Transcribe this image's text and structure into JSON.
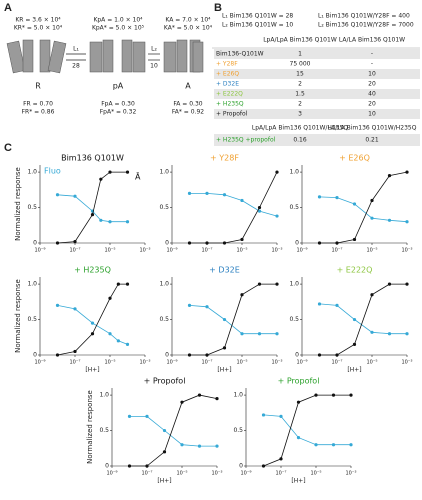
{
  "panel_a": {
    "label": "A",
    "states": [
      {
        "name": "R",
        "k1": "KR = 3.6 × 10⁴",
        "k2": "KR* = 5.0 × 10⁴",
        "f1": "FR = 0.70",
        "f2": "FR* = 0.86"
      },
      {
        "name": "pA",
        "k1": "KpA = 1.0 × 10⁴",
        "k2": "KpA* = 5.0 × 10⁵",
        "f1": "FpA = 0.30",
        "f2": "FpA* = 0.32"
      },
      {
        "name": "A",
        "k1": "KA = 7.0 × 10⁴",
        "k2": "KA* = 5.0 × 10⁴",
        "f1": "FA = 0.30",
        "f2": "FA* = 0.92"
      }
    ],
    "transitions": [
      {
        "label": "L₁",
        "value": 28
      },
      {
        "label": "L₂",
        "value": 10
      }
    ]
  },
  "panel_b": {
    "label": "B",
    "constants": [
      "L₁ Bim136 Q101W = 28",
      "L₂ Bim136 Q101W = 10",
      "L₁ Bim136 Q101W/Y28F = 400",
      "L₂ Bim136 Q101W/Y28F = 7000"
    ],
    "header": [
      "LpA/LpA Bim136 Q101W",
      "LA/LA Bim136 Q101W"
    ],
    "rows": [
      [
        "Bim136-Q101W",
        "1",
        "-"
      ],
      [
        "+ Y28F",
        "75 000",
        "-"
      ],
      [
        "+ E26Q",
        "15",
        "10"
      ],
      [
        "+ D32E",
        "2",
        "20"
      ],
      [
        "+ E222Q",
        "1.5",
        "40"
      ],
      [
        "+ H235Q",
        "2",
        "20"
      ],
      [
        "+ Propofol",
        "3",
        "10"
      ]
    ],
    "header2": [
      "LpA/LpA Bim136 Q101W/H235Q",
      "LA/LA Bim136 Q101W/H235Q"
    ],
    "rows2": [
      [
        "+ H235Q +propofol",
        "0.16",
        "0.21"
      ]
    ]
  },
  "panel_c": {
    "label": "C"
  },
  "chart_data": [
    {
      "type": "line",
      "title": "Bim136 Q101W",
      "title_color": "#111111",
      "ylabel": "Normalized response",
      "xlim": [
        1e-09,
        0.001
      ],
      "log_x": true,
      "ylim": [
        0,
        1.1
      ],
      "xticks": [
        {
          "value": 1e-09,
          "label": "10⁻⁹"
        },
        {
          "value": 1e-07,
          "label": "10⁻⁷"
        },
        {
          "value": 1e-05,
          "label": "10⁻⁵"
        },
        {
          "value": 0.001,
          "label": "10⁻³"
        }
      ],
      "yticks": [
        0,
        0.5,
        {
          "value": 1,
          "label": "1.0"
        }
      ],
      "x": [
        1e-08,
        1e-07,
        1e-06,
        3e-06,
        1e-05,
        0.0001
      ],
      "series": [
        {
          "name": "Fluo",
          "color": "#35a9d6",
          "values": [
            0.68,
            0.66,
            0.45,
            0.32,
            0.3,
            0.3
          ]
        },
        {
          "name": "Ā",
          "color": "#111111",
          "values": [
            0,
            0.02,
            0.4,
            0.9,
            1.0,
            1.0
          ]
        }
      ]
    },
    {
      "type": "line",
      "title": "+ Y28F",
      "title_color": "#f0a030",
      "xlim": [
        1e-09,
        0.001
      ],
      "log_x": true,
      "ylim": [
        0,
        1.1
      ],
      "xticks": [
        {
          "value": 1e-09,
          "label": "10⁻⁹"
        },
        {
          "value": 1e-07,
          "label": "10⁻⁷"
        },
        {
          "value": 1e-05,
          "label": "10⁻⁵"
        },
        {
          "value": 0.001,
          "label": "10⁻³"
        }
      ],
      "yticks": [
        0,
        0.5,
        {
          "value": 1,
          "label": "1.0"
        }
      ],
      "x": [
        1e-08,
        1e-07,
        1e-06,
        1e-05,
        0.0001,
        0.001
      ],
      "series": [
        {
          "color": "#35a9d6",
          "values": [
            0.7,
            0.7,
            0.68,
            0.6,
            0.45,
            0.38
          ]
        },
        {
          "color": "#111111",
          "values": [
            0,
            0,
            0,
            0.05,
            0.5,
            1.0
          ]
        }
      ]
    },
    {
      "type": "line",
      "title": "+ E26Q",
      "title_color": "#f0a030",
      "xlim": [
        1e-09,
        0.001
      ],
      "log_x": true,
      "ylim": [
        0,
        1.1
      ],
      "xticks": [
        {
          "value": 1e-09,
          "label": "10⁻⁹"
        },
        {
          "value": 1e-07,
          "label": "10⁻⁷"
        },
        {
          "value": 1e-05,
          "label": "10⁻⁵"
        },
        {
          "value": 0.001,
          "label": "10⁻³"
        }
      ],
      "yticks": [
        0,
        0.5,
        {
          "value": 1,
          "label": "1.0"
        }
      ],
      "x": [
        1e-08,
        1e-07,
        1e-06,
        1e-05,
        0.0001,
        0.001
      ],
      "series": [
        {
          "color": "#35a9d6",
          "values": [
            0.65,
            0.64,
            0.55,
            0.35,
            0.32,
            0.3
          ]
        },
        {
          "color": "#111111",
          "values": [
            0,
            0,
            0.05,
            0.6,
            0.95,
            1
          ]
        }
      ]
    },
    {
      "type": "line",
      "title": "+ H235Q",
      "title_color": "#2aa02a",
      "ylabel": "Normalized response",
      "xlabel": "[H+]",
      "xlim": [
        1e-09,
        0.001
      ],
      "log_x": true,
      "ylim": [
        0,
        1.1
      ],
      "xticks": [
        {
          "value": 1e-09,
          "label": "10⁻⁹"
        },
        {
          "value": 1e-07,
          "label": "10⁻⁷"
        },
        {
          "value": 1e-05,
          "label": "10⁻⁵"
        },
        {
          "value": 0.001,
          "label": "10⁻³"
        }
      ],
      "yticks": [
        0,
        0.5,
        {
          "value": 1,
          "label": "1.0"
        }
      ],
      "x": [
        1e-08,
        1e-07,
        1e-06,
        1e-05,
        3e-05,
        0.0001
      ],
      "series": [
        {
          "color": "#35a9d6",
          "values": [
            0.7,
            0.65,
            0.45,
            0.3,
            0.2,
            0.15
          ]
        },
        {
          "color": "#111111",
          "values": [
            0,
            0.05,
            0.3,
            0.8,
            1,
            1
          ]
        }
      ]
    },
    {
      "type": "line",
      "title": "+ D32E",
      "title_color": "#2a7fc0",
      "xlabel": "[H+]",
      "xlim": [
        1e-09,
        0.001
      ],
      "log_x": true,
      "ylim": [
        0,
        1.1
      ],
      "xticks": [
        {
          "value": 1e-09,
          "label": "10⁻⁹"
        },
        {
          "value": 1e-07,
          "label": "10⁻⁷"
        },
        {
          "value": 1e-05,
          "label": "10⁻⁵"
        },
        {
          "value": 0.001,
          "label": "10⁻³"
        }
      ],
      "yticks": [
        0,
        0.5,
        {
          "value": 1,
          "label": "1.0"
        }
      ],
      "x": [
        1e-08,
        1e-07,
        1e-06,
        1e-05,
        0.0001,
        0.001
      ],
      "series": [
        {
          "color": "#35a9d6",
          "values": [
            0.7,
            0.68,
            0.5,
            0.3,
            0.3,
            0.3
          ]
        },
        {
          "color": "#111111",
          "values": [
            0,
            0,
            0.1,
            0.85,
            1,
            1
          ]
        }
      ]
    },
    {
      "type": "line",
      "title": "+ E222Q",
      "title_color": "#8cc63f",
      "xlabel": "[H+]",
      "xlim": [
        1e-09,
        0.001
      ],
      "log_x": true,
      "ylim": [
        0,
        1.1
      ],
      "xticks": [
        {
          "value": 1e-09,
          "label": "10⁻⁹"
        },
        {
          "value": 1e-07,
          "label": "10⁻⁷"
        },
        {
          "value": 1e-05,
          "label": "10⁻⁵"
        },
        {
          "value": 0.001,
          "label": "10⁻³"
        }
      ],
      "yticks": [
        0,
        0.5,
        {
          "value": 1,
          "label": "1.0"
        }
      ],
      "x": [
        1e-08,
        1e-07,
        1e-06,
        1e-05,
        0.0001,
        0.001
      ],
      "series": [
        {
          "color": "#35a9d6",
          "values": [
            0.72,
            0.7,
            0.5,
            0.32,
            0.3,
            0.3
          ]
        },
        {
          "color": "#111111",
          "values": [
            0,
            0,
            0.15,
            0.85,
            1,
            1
          ]
        }
      ]
    },
    {
      "type": "line",
      "title": "+ Propofol",
      "title_color": "#111111",
      "ylabel": "Normalized response",
      "xlabel": "[H+]",
      "xlim": [
        1e-09,
        0.001
      ],
      "log_x": true,
      "ylim": [
        0,
        1.1
      ],
      "xticks": [
        {
          "value": 1e-09,
          "label": "10⁻⁹"
        },
        {
          "value": 1e-07,
          "label": "10⁻⁷"
        },
        {
          "value": 1e-05,
          "label": "10⁻⁵"
        },
        {
          "value": 0.001,
          "label": "10⁻³"
        }
      ],
      "yticks": [
        0,
        0.5,
        {
          "value": 1,
          "label": "1.0"
        }
      ],
      "x": [
        1e-08,
        1e-07,
        1e-06,
        1e-05,
        0.0001,
        0.001
      ],
      "series": [
        {
          "color": "#35a9d6",
          "values": [
            0.7,
            0.7,
            0.5,
            0.3,
            0.28,
            0.28
          ]
        },
        {
          "color": "#111111",
          "values": [
            0,
            0,
            0.2,
            0.9,
            1,
            0.95
          ]
        }
      ]
    },
    {
      "type": "line",
      "title": "+ Propofol",
      "title_color": "#2aa02a",
      "xlabel": "[H+]",
      "xlim": [
        1e-09,
        0.001
      ],
      "log_x": true,
      "ylim": [
        0,
        1.1
      ],
      "xticks": [
        {
          "value": 1e-09,
          "label": "10⁻⁹"
        },
        {
          "value": 1e-07,
          "label": "10⁻⁷"
        },
        {
          "value": 1e-05,
          "label": "10⁻⁵"
        },
        {
          "value": 0.001,
          "label": "10⁻³"
        }
      ],
      "yticks": [
        0,
        0.5,
        {
          "value": 1,
          "label": "1.0"
        }
      ],
      "x": [
        1e-08,
        1e-07,
        1e-06,
        1e-05,
        0.0001,
        0.001
      ],
      "series": [
        {
          "color": "#35a9d6",
          "values": [
            0.72,
            0.7,
            0.4,
            0.3,
            0.3,
            0.3
          ]
        },
        {
          "color": "#111111",
          "values": [
            0,
            0.1,
            0.9,
            1,
            1,
            1
          ]
        }
      ]
    }
  ]
}
